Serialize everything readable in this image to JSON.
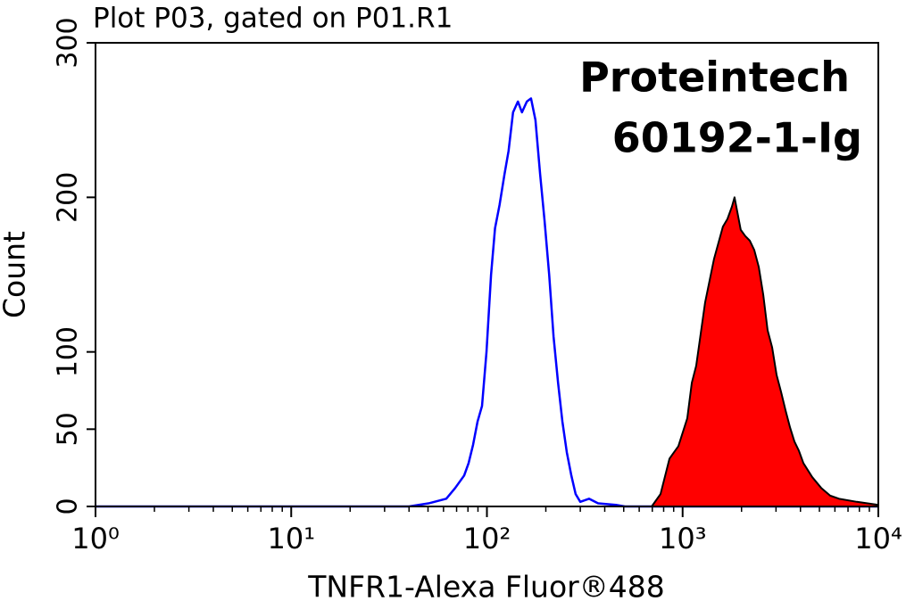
{
  "chart_data": {
    "type": "histogram-overlay",
    "title": "Plot P03, gated on P01.R1",
    "annotations": [
      "Proteintech",
      "60192-1-Ig"
    ],
    "x_label": "TNFR1-Alexa Fluor®488",
    "y_label": "Count",
    "xscale": "log",
    "xlim": [
      1,
      10000
    ],
    "xticks": [
      {
        "value": 1,
        "label": "10⁰"
      },
      {
        "value": 10,
        "label": "10¹"
      },
      {
        "value": 100,
        "label": "10²"
      },
      {
        "value": 1000,
        "label": "10³"
      },
      {
        "value": 10000,
        "label": "10⁴"
      }
    ],
    "ylim": [
      0,
      300
    ],
    "yticks": [
      0,
      50,
      100,
      200,
      300
    ],
    "series": [
      {
        "color": "#0000ff",
        "fill": false,
        "x": [
          1,
          40,
          50.3,
          62,
          68.9,
          76.5,
          80.6,
          85,
          89.6,
          94.4,
          99.5,
          105,
          110,
          116,
          123,
          129,
          136,
          144,
          151,
          160,
          168,
          177,
          187,
          197,
          208,
          219,
          231,
          243,
          256,
          270,
          284,
          300,
          333,
          370,
          456,
          507,
          10000
        ],
        "values": [
          0,
          0,
          2,
          5,
          12,
          20,
          28,
          40,
          55,
          65,
          100,
          150,
          180,
          195,
          215,
          230,
          255,
          262,
          255,
          262,
          264,
          250,
          215,
          185,
          150,
          110,
          80,
          55,
          35,
          20,
          8,
          3,
          5,
          2,
          1,
          0,
          0
        ]
      },
      {
        "color": "#ff0000",
        "fill": true,
        "x": [
          695,
          771,
          857,
          951,
          1056,
          1114,
          1173,
          1303,
          1446,
          1606,
          1694,
          1786,
          1842,
          1981,
          2089,
          2203,
          2322,
          2449,
          2582,
          2718,
          2866,
          3022,
          3186,
          3359,
          3541,
          3727,
          3929,
          4142,
          4594,
          5105,
          5675,
          6295,
          7762,
          10000
        ],
        "values": [
          0,
          8,
          31,
          39,
          57,
          80,
          91,
          132,
          160,
          181,
          186,
          194,
          200,
          179,
          175,
          172,
          166,
          155,
          137,
          114,
          103,
          85,
          74,
          62,
          51,
          42,
          36,
          28,
          19,
          12,
          7,
          5,
          3,
          1
        ]
      }
    ]
  }
}
